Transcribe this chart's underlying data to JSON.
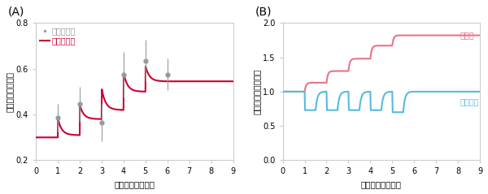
{
  "panel_A": {
    "label": "(A)",
    "xlabel": "トレーニング日数",
    "ylabel": "目の動きの大きさ",
    "xlim": [
      0,
      9
    ],
    "ylim": [
      0.2,
      0.8
    ],
    "yticks": [
      0.2,
      0.4,
      0.6,
      0.8
    ],
    "xticks": [
      0,
      1,
      2,
      3,
      4,
      5,
      6,
      7,
      8,
      9
    ],
    "legend_mouse": "マウス実験",
    "legend_model": "数理モデル",
    "mouse_color": "#999999",
    "model_color": "#cc0033",
    "scatter_x": [
      1,
      2,
      3,
      4,
      5,
      6
    ],
    "scatter_y": [
      0.385,
      0.445,
      0.365,
      0.575,
      0.635,
      0.575
    ],
    "scatter_err": [
      0.06,
      0.075,
      0.08,
      0.1,
      0.09,
      0.07
    ]
  },
  "panel_B": {
    "label": "(B)",
    "xlabel": "トレーニング日数",
    "ylabel": "シナプスの伝達効率",
    "xlim": [
      0,
      9
    ],
    "ylim": [
      0.0,
      2.0
    ],
    "yticks": [
      0.0,
      0.5,
      1.0,
      1.5,
      2.0
    ],
    "xticks": [
      0,
      1,
      2,
      3,
      4,
      5,
      6,
      7,
      8,
      9
    ],
    "legend_nucleus": "小脳核",
    "legend_cortex": "小脳皮質",
    "nucleus_color": "#e8748a",
    "cortex_color": "#55bbdd"
  },
  "font_size_label": 7.5,
  "font_size_tick": 7,
  "font_size_legend": 7,
  "font_size_panel": 10
}
